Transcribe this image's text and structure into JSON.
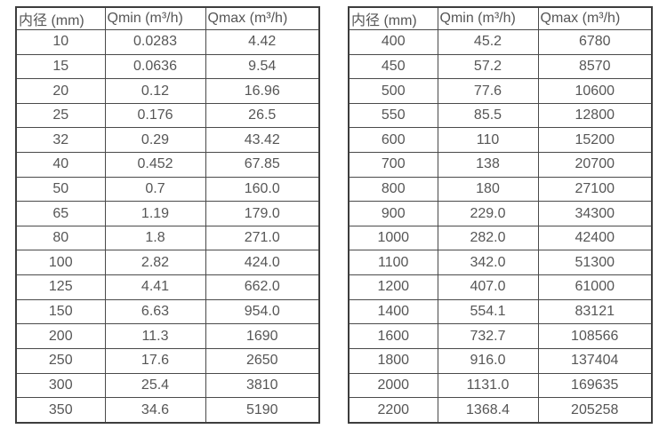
{
  "style": {
    "text_color": "#565656",
    "border_color": "#4a4a4a",
    "background": "#ffffff"
  },
  "tables": [
    {
      "name": "flow-spec-small-diameters",
      "headers": [
        "内径 (mm)",
        "Qmin (m³/h)",
        "Qmax (m³/h)"
      ],
      "rows": [
        [
          "10",
          "0.0283",
          "4.42"
        ],
        [
          "15",
          "0.0636",
          "9.54"
        ],
        [
          "20",
          "0.12",
          "16.96"
        ],
        [
          "25",
          "0.176",
          "26.5"
        ],
        [
          "32",
          "0.29",
          "43.42"
        ],
        [
          "40",
          "0.452",
          "67.85"
        ],
        [
          "50",
          "0.7",
          "160.0"
        ],
        [
          "65",
          "1.19",
          "179.0"
        ],
        [
          "80",
          "1.8",
          "271.0"
        ],
        [
          "100",
          "2.82",
          "424.0"
        ],
        [
          "125",
          "4.41",
          "662.0"
        ],
        [
          "150",
          "6.63",
          "954.0"
        ],
        [
          "200",
          "11.3",
          "1690"
        ],
        [
          "250",
          "17.6",
          "2650"
        ],
        [
          "300",
          "25.4",
          "3810"
        ],
        [
          "350",
          "34.6",
          "5190"
        ]
      ]
    },
    {
      "name": "flow-spec-large-diameters",
      "headers": [
        "内径 (mm)",
        "Qmin (m³/h)",
        "Qmax (m³/h)"
      ],
      "rows": [
        [
          "400",
          "45.2",
          "6780"
        ],
        [
          "450",
          "57.2",
          "8570"
        ],
        [
          "500",
          "77.6",
          "10600"
        ],
        [
          "550",
          "85.5",
          "12800"
        ],
        [
          "600",
          "110",
          "15200"
        ],
        [
          "700",
          "138",
          "20700"
        ],
        [
          "800",
          "180",
          "27100"
        ],
        [
          "900",
          "229.0",
          "34300"
        ],
        [
          "1000",
          "282.0",
          "42400"
        ],
        [
          "1100",
          "342.0",
          "51300"
        ],
        [
          "1200",
          "407.0",
          "61000"
        ],
        [
          "1400",
          "554.1",
          "83121"
        ],
        [
          "1600",
          "732.7",
          "108566"
        ],
        [
          "1800",
          "916.0",
          "137404"
        ],
        [
          "2000",
          "1131.0",
          "169635"
        ],
        [
          "2200",
          "1368.4",
          "205258"
        ]
      ]
    }
  ]
}
